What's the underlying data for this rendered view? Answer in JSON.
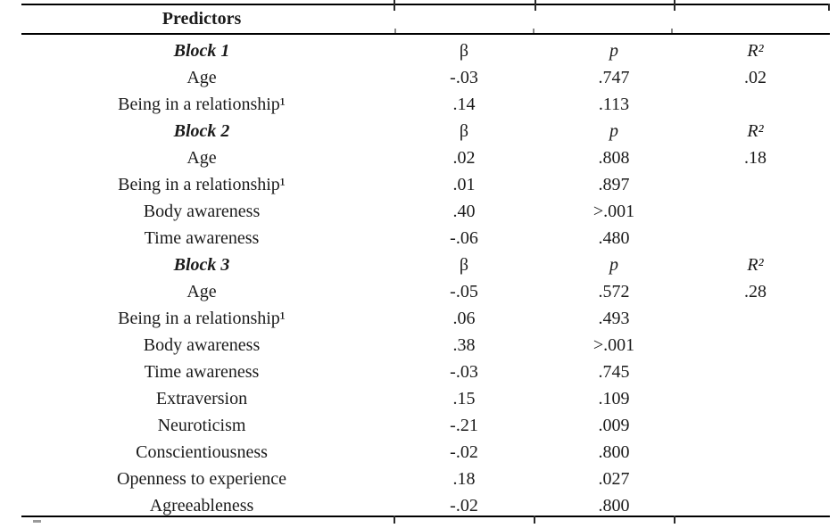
{
  "page": {
    "background_color": "#ffffff",
    "text_color": "#1b1b1b",
    "rule_color": "#000000"
  },
  "table": {
    "header": {
      "predictors_label": "Predictors"
    },
    "column_keys": [
      "label",
      "beta",
      "p",
      "r2"
    ],
    "rows": [
      {
        "type": "block",
        "label": "Block 1",
        "beta": "β",
        "p": "p",
        "r2": "R²"
      },
      {
        "type": "predictor",
        "label": "Age",
        "beta": "-.03",
        "p": ".747",
        "r2": ".02"
      },
      {
        "type": "predictor",
        "label": "Being in a relationship¹",
        "beta": ".14",
        "p": ".113",
        "r2": ""
      },
      {
        "type": "block",
        "label": "Block 2",
        "beta": "β",
        "p": "p",
        "r2": "R²"
      },
      {
        "type": "predictor",
        "label": "Age",
        "beta": ".02",
        "p": ".808",
        "r2": ".18"
      },
      {
        "type": "predictor",
        "label": "Being in a relationship¹",
        "beta": ".01",
        "p": ".897",
        "r2": ""
      },
      {
        "type": "predictor",
        "label": "Body awareness",
        "beta": ".40",
        "p": ">.001",
        "r2": ""
      },
      {
        "type": "predictor",
        "label": "Time awareness",
        "beta": "-.06",
        "p": ".480",
        "r2": ""
      },
      {
        "type": "block",
        "label": "Block 3",
        "beta": "β",
        "p": "p",
        "r2": "R²"
      },
      {
        "type": "predictor",
        "label": "Age",
        "beta": "-.05",
        "p": ".572",
        "r2": ".28"
      },
      {
        "type": "predictor",
        "label": "Being in a relationship¹",
        "beta": ".06",
        "p": ".493",
        "r2": ""
      },
      {
        "type": "predictor",
        "label": "Body awareness",
        "beta": ".38",
        "p": ">.001",
        "r2": ""
      },
      {
        "type": "predictor",
        "label": "Time awareness",
        "beta": "-.03",
        "p": ".745",
        "r2": ""
      },
      {
        "type": "predictor",
        "label": "Extraversion",
        "beta": ".15",
        "p": ".109",
        "r2": ""
      },
      {
        "type": "predictor",
        "label": "Neuroticism",
        "beta": "-.21",
        "p": ".009",
        "r2": ""
      },
      {
        "type": "predictor",
        "label": "Conscientiousness",
        "beta": "-.02",
        "p": ".800",
        "r2": ""
      },
      {
        "type": "predictor",
        "label": "Openness to experience",
        "beta": ".18",
        "p": ".027",
        "r2": ""
      },
      {
        "type": "predictor",
        "label": "Agreeableness",
        "beta": "-.02",
        "p": ".800",
        "r2": ""
      }
    ]
  }
}
